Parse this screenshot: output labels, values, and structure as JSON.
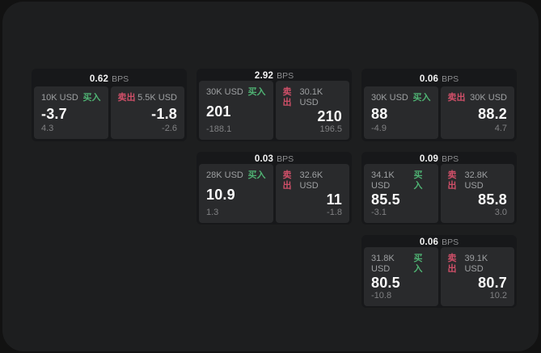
{
  "labels": {
    "buy": "买入",
    "sell": "卖出",
    "bps_unit": "BPS"
  },
  "colors": {
    "buy": "#4fb273",
    "sell": "#cf4f68",
    "window_bg": "#1d1e1f",
    "card_bg": "#17181a",
    "panel_bg": "#292a2c"
  },
  "cards": [
    {
      "bps": "0.62",
      "col": 1,
      "row": 1,
      "buy": {
        "notional": "10K USD",
        "price": "-3.7",
        "delta": "4.3"
      },
      "sell": {
        "notional": "5.5K USD",
        "price": "-1.8",
        "delta": "-2.6"
      }
    },
    {
      "bps": "2.92",
      "col": 2,
      "row": 1,
      "buy": {
        "notional": "30K USD",
        "price": "201",
        "delta": "-188.1"
      },
      "sell": {
        "notional": "30.1K USD",
        "price": "210",
        "delta": "196.5"
      }
    },
    {
      "bps": "0.06",
      "col": 3,
      "row": 1,
      "buy": {
        "notional": "30K USD",
        "price": "88",
        "delta": "-4.9"
      },
      "sell": {
        "notional": "30K USD",
        "price": "88.2",
        "delta": "4.7"
      }
    },
    {
      "bps": "0.03",
      "col": 2,
      "row": 2,
      "buy": {
        "notional": "28K USD",
        "price": "10.9",
        "delta": "1.3"
      },
      "sell": {
        "notional": "32.6K USD",
        "price": "11",
        "delta": "-1.8"
      }
    },
    {
      "bps": "0.09",
      "col": 3,
      "row": 2,
      "buy": {
        "notional": "34.1K USD",
        "price": "85.5",
        "delta": "-3.1"
      },
      "sell": {
        "notional": "32.8K USD",
        "price": "85.8",
        "delta": "3.0"
      }
    },
    {
      "bps": "0.06",
      "col": 3,
      "row": 3,
      "buy": {
        "notional": "31.8K USD",
        "price": "80.5",
        "delta": "-10.8"
      },
      "sell": {
        "notional": "39.1K USD",
        "price": "80.7",
        "delta": "10.2"
      }
    }
  ]
}
